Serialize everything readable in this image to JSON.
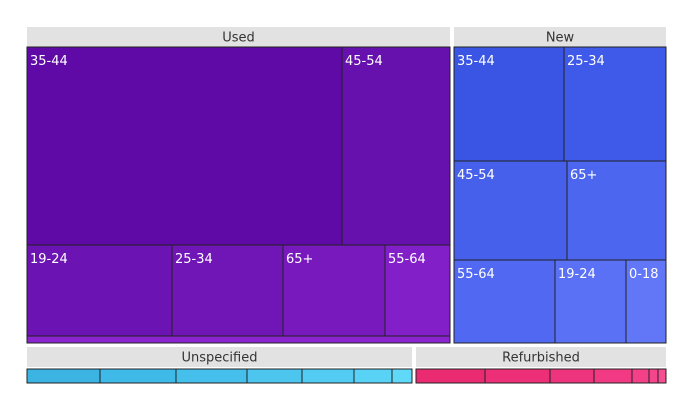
{
  "chart_data": {
    "type": "treemap",
    "groups": [
      {
        "name": "Used",
        "leaves": [
          {
            "label": "35-44",
            "color": "#5f0aa6"
          },
          {
            "label": "45-54",
            "color": "#6610ad"
          },
          {
            "label": "19-24",
            "color": "#6b13b3"
          },
          {
            "label": "25-34",
            "color": "#7016b7"
          },
          {
            "label": "65+",
            "color": "#7819be"
          },
          {
            "label": "55-64",
            "color": "#821fc8"
          },
          {
            "label": "",
            "color": "#8a24cf"
          }
        ]
      },
      {
        "name": "New",
        "leaves": [
          {
            "label": "35-44",
            "color": "#3a55e3"
          },
          {
            "label": "25-34",
            "color": "#3f5ae8"
          },
          {
            "label": "45-54",
            "color": "#4760eb"
          },
          {
            "label": "65+",
            "color": "#4c66f0"
          },
          {
            "label": "55-64",
            "color": "#5068f2"
          },
          {
            "label": "19-24",
            "color": "#5a70f5"
          },
          {
            "label": "0-18",
            "color": "#6276f8"
          }
        ]
      },
      {
        "name": "Unspecified",
        "leaves": [
          {
            "label": "",
            "color": "#3bb4e4"
          },
          {
            "label": "",
            "color": "#3fbae8"
          },
          {
            "label": "",
            "color": "#45c0ec"
          },
          {
            "label": "",
            "color": "#4cc6ef"
          },
          {
            "label": "",
            "color": "#52ccf2"
          },
          {
            "label": "",
            "color": "#58d2f5"
          },
          {
            "label": "",
            "color": "#60d8f8"
          }
        ]
      },
      {
        "name": "Refurbished",
        "leaves": [
          {
            "label": "",
            "color": "#ea2b72"
          },
          {
            "label": "",
            "color": "#ed2f78"
          },
          {
            "label": "",
            "color": "#ef347e"
          },
          {
            "label": "",
            "color": "#f13a83"
          },
          {
            "label": "",
            "color": "#f34088"
          },
          {
            "label": "",
            "color": "#f5468d"
          },
          {
            "label": "",
            "color": "#f74c92"
          }
        ]
      }
    ]
  }
}
